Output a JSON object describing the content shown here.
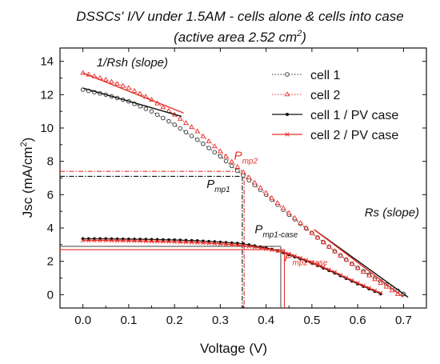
{
  "chart_data": {
    "type": "line",
    "title_line1": "DSSCs'  I/V  under 1.5AM - cells alone & cells into case",
    "title_line2": "(active area 2.52 cm",
    "title_line2_sup": "2",
    "title_line2_end": ")",
    "xlabel": "Voltage (V)",
    "ylabel": "Jsc (mA/cm",
    "ylabel_sup": "2",
    "ylabel_end": ")",
    "xlim": [
      -0.05,
      0.75
    ],
    "ylim": [
      -0.8,
      14.8
    ],
    "x_ticks": [
      0.0,
      0.1,
      0.2,
      0.3,
      0.4,
      0.5,
      0.6,
      0.7
    ],
    "x_tick_labels": [
      "0.0",
      "0.1",
      "0.2",
      "0.3",
      "0.4",
      "0.5",
      "0.6",
      "0.7"
    ],
    "y_ticks": [
      0,
      2,
      4,
      6,
      8,
      10,
      12,
      14
    ],
    "y_tick_labels": [
      "0",
      "2",
      "4",
      "6",
      "8",
      "10",
      "12",
      "14"
    ],
    "legend_position": "top-right",
    "series": [
      {
        "name": "cell 1",
        "color": "#333333",
        "style": "dotted",
        "marker": "open-circle",
        "x": [
          0.0,
          0.05,
          0.1,
          0.15,
          0.2,
          0.25,
          0.3,
          0.35,
          0.4,
          0.45,
          0.5,
          0.55,
          0.6,
          0.65,
          0.7,
          0.705
        ],
        "y": [
          12.3,
          12.0,
          11.6,
          11.0,
          10.2,
          9.3,
          8.3,
          7.15,
          6.0,
          4.8,
          3.7,
          2.6,
          1.6,
          0.8,
          0.05,
          -0.1
        ]
      },
      {
        "name": "cell 2",
        "color": "#e8302a",
        "style": "dotted",
        "marker": "open-triangle",
        "x": [
          0.0,
          0.05,
          0.1,
          0.15,
          0.2,
          0.25,
          0.3,
          0.35,
          0.4,
          0.45,
          0.5,
          0.55,
          0.6,
          0.65,
          0.695
        ],
        "y": [
          13.3,
          12.9,
          12.4,
          11.7,
          10.8,
          9.8,
          8.6,
          7.35,
          6.1,
          4.9,
          3.7,
          2.6,
          1.6,
          0.7,
          -0.1
        ]
      },
      {
        "name": "cell 1 / PV case",
        "color": "#111111",
        "style": "solid",
        "marker": "filled-circle",
        "x": [
          0.0,
          0.05,
          0.1,
          0.15,
          0.2,
          0.25,
          0.3,
          0.35,
          0.4,
          0.43,
          0.45,
          0.5,
          0.55,
          0.6,
          0.65
        ],
        "y": [
          3.35,
          3.35,
          3.33,
          3.31,
          3.28,
          3.23,
          3.15,
          3.05,
          2.8,
          2.6,
          2.4,
          1.9,
          1.3,
          0.65,
          0.05
        ]
      },
      {
        "name": "cell 2 / PV case",
        "color": "#e8302a",
        "style": "solid",
        "marker": "cross",
        "x": [
          0.0,
          0.05,
          0.1,
          0.15,
          0.2,
          0.25,
          0.3,
          0.35,
          0.4,
          0.44,
          0.45,
          0.5,
          0.55,
          0.6,
          0.65
        ],
        "y": [
          3.25,
          3.25,
          3.23,
          3.2,
          3.17,
          3.12,
          3.05,
          2.95,
          2.75,
          2.55,
          2.45,
          1.95,
          1.35,
          0.7,
          0.1
        ]
      }
    ],
    "slope_lines": [
      {
        "color": "#111111",
        "x": [
          0.0,
          0.215
        ],
        "y": [
          12.4,
          10.7
        ]
      },
      {
        "color": "#e8302a",
        "x": [
          0.0,
          0.22
        ],
        "y": [
          13.3,
          10.9
        ]
      },
      {
        "color": "#111111",
        "x": [
          0.505,
          0.71
        ],
        "y": [
          3.9,
          -0.15
        ]
      },
      {
        "color": "#e8302a",
        "x": [
          0.505,
          0.7
        ],
        "y": [
          3.9,
          -0.15
        ]
      }
    ],
    "mpp_guides": [
      {
        "color": "#111111",
        "dash": "6,2,1.5,2",
        "x": 0.348,
        "y": 7.1
      },
      {
        "color": "#e8302a",
        "dash": "6,2,1.5,2",
        "x": 0.352,
        "y": 7.4
      },
      {
        "color": "#555555",
        "dash": "",
        "x": 0.432,
        "y": 2.9
      },
      {
        "color": "#e8302a",
        "dash": "",
        "x": 0.44,
        "y": 2.7
      }
    ],
    "annotations": [
      {
        "id": "rsh",
        "text": "1/Rsh (slope)",
        "sub": "",
        "color": "#111111",
        "x": 0.03,
        "y": 13.7
      },
      {
        "id": "pmp2",
        "text": "P",
        "sub": "mp2",
        "color": "#e8302a",
        "x": 0.33,
        "y": 8.1
      },
      {
        "id": "pmp1",
        "text": "P",
        "sub": "mp1",
        "color": "#111111",
        "x": 0.27,
        "y": 6.4
      },
      {
        "id": "pmp1c",
        "text": "P",
        "sub": "mp1-case",
        "color": "#111111",
        "x": 0.375,
        "y": 3.7
      },
      {
        "id": "pmp2c",
        "text": "P",
        "sub": "mp2-case",
        "color": "#e8302a",
        "x": 0.44,
        "y": 2.0
      },
      {
        "id": "rs",
        "text": "Rs (slope)",
        "sub": "",
        "color": "#111111",
        "x": 0.615,
        "y": 4.7
      }
    ]
  }
}
